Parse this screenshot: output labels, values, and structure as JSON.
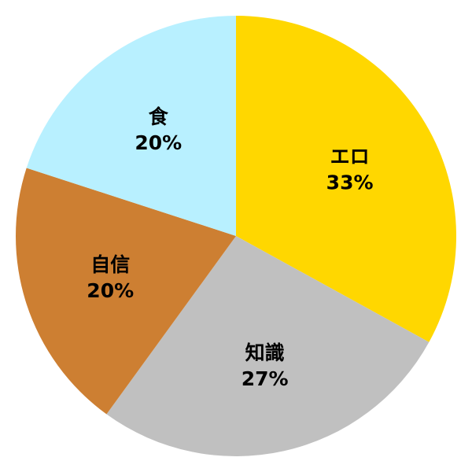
{
  "chart_data": {
    "type": "pie",
    "start": "top",
    "direction": "clockwise",
    "slices": [
      {
        "label": "エロ",
        "value": 33,
        "value_label": "33%",
        "color": "#FFD700"
      },
      {
        "label": "知識",
        "value": 27,
        "value_label": "27%",
        "color": "#C0C0C0"
      },
      {
        "label": "自信",
        "value": 20,
        "value_label": "20%",
        "color": "#CD7F32"
      },
      {
        "label": "食",
        "value": 20,
        "value_label": "20%",
        "color": "#B8F0FF"
      }
    ]
  }
}
